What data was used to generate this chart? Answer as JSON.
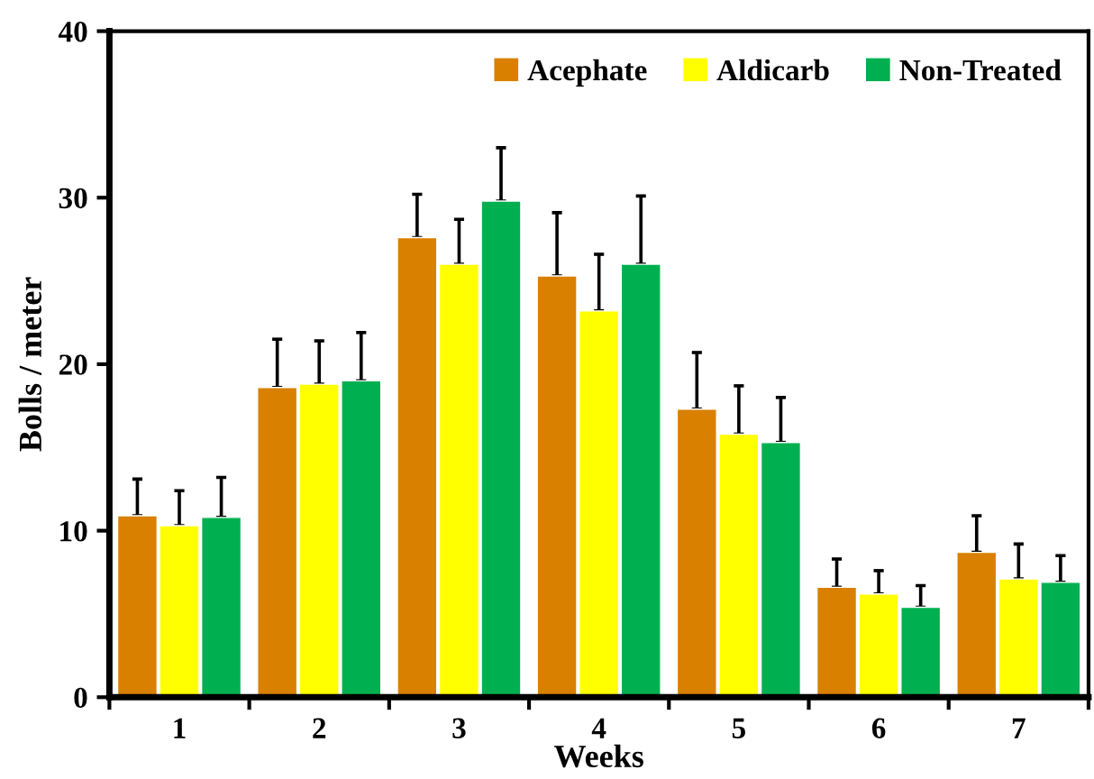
{
  "chart_data": {
    "type": "bar",
    "xlabel": "Weeks",
    "ylabel": "Bolls / meter",
    "categories": [
      "1",
      "2",
      "3",
      "4",
      "5",
      "6",
      "7"
    ],
    "series": [
      {
        "name": "Acephate",
        "color": "#d98000",
        "values": [
          10.9,
          18.6,
          27.6,
          25.3,
          17.3,
          6.6,
          8.7
        ],
        "errors": [
          [
            10.9,
            13.1
          ],
          [
            18.6,
            21.5
          ],
          [
            27.6,
            30.2
          ],
          [
            25.3,
            29.1
          ],
          [
            17.3,
            20.7
          ],
          [
            6.6,
            8.3
          ],
          [
            8.7,
            10.9
          ]
        ]
      },
      {
        "name": "Aldicarb",
        "color": "#ffff00",
        "values": [
          10.3,
          18.8,
          26.0,
          23.2,
          15.8,
          6.2,
          7.1
        ],
        "errors": [
          [
            10.3,
            12.4
          ],
          [
            18.8,
            21.4
          ],
          [
            26.0,
            28.7
          ],
          [
            23.2,
            26.6
          ],
          [
            15.8,
            18.7
          ],
          [
            6.2,
            7.6
          ],
          [
            7.1,
            9.2
          ]
        ]
      },
      {
        "name": "Non-Treated",
        "color": "#00b050",
        "values": [
          10.8,
          19.0,
          29.8,
          26.0,
          15.3,
          5.4,
          6.9
        ],
        "errors": [
          [
            10.8,
            13.2
          ],
          [
            19.0,
            21.9
          ],
          [
            29.8,
            33.0
          ],
          [
            26.0,
            30.1
          ],
          [
            15.3,
            18.0
          ],
          [
            5.4,
            6.7
          ],
          [
            6.9,
            8.5
          ]
        ]
      }
    ],
    "ylim": [
      0,
      40
    ],
    "yticks": [
      0,
      10,
      20,
      30,
      40
    ],
    "grid": false,
    "legend": "top right"
  }
}
